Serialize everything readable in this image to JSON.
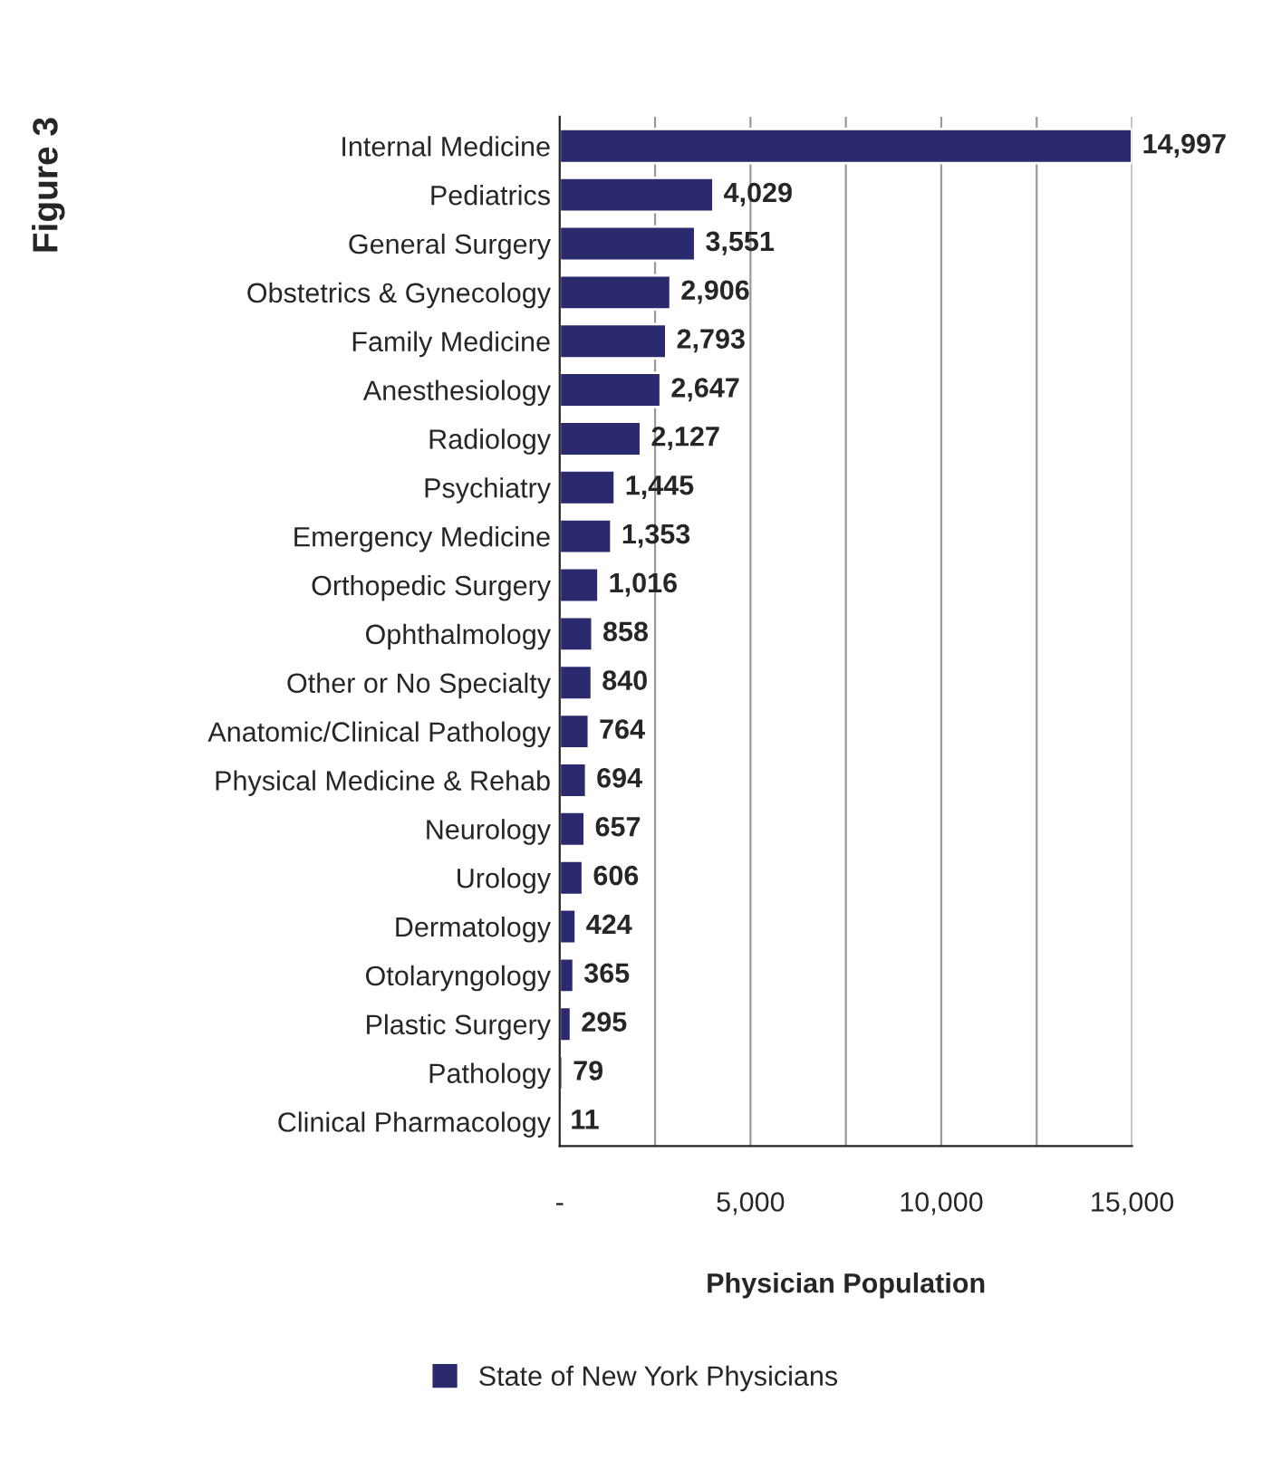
{
  "chart_data": {
    "type": "bar",
    "orientation": "horizontal",
    "title": "Figure 3",
    "xlabel": "Physician Population",
    "categories": [
      "Internal Medicine",
      "Pediatrics",
      "General Surgery",
      "Obstetrics & Gynecology",
      "Family Medicine",
      "Anesthesiology",
      "Radiology",
      "Psychiatry",
      "Emergency Medicine",
      "Orthopedic Surgery",
      "Ophthalmology",
      "Other or No Specialty",
      "Anatomic/Clinical Pathology",
      "Physical Medicine & Rehab",
      "Neurology",
      "Urology",
      "Dermatology",
      "Otolaryngology",
      "Plastic Surgery",
      "Pathology",
      "Clinical Pharmacology"
    ],
    "series": [
      {
        "name": "State of New York Physicians",
        "color": "#2b2a6e",
        "values": [
          14997,
          4029,
          3551,
          2906,
          2793,
          2647,
          2127,
          1445,
          1353,
          1016,
          858,
          840,
          764,
          694,
          657,
          606,
          424,
          365,
          295,
          79,
          11
        ],
        "value_labels": [
          "14,997",
          "4,029",
          "3,551",
          "2,906",
          "2,793",
          "2,647",
          "2,127",
          "1,445",
          "1,353",
          "1,016",
          "858",
          "840",
          "764",
          "694",
          "657",
          "606",
          "424",
          "365",
          "295",
          "79",
          "11"
        ]
      }
    ],
    "xlim": [
      0,
      15000
    ],
    "xticks": [
      {
        "value": 0,
        "label": "-"
      },
      {
        "value": 2500,
        "label": null
      },
      {
        "value": 5000,
        "label": "5,000"
      },
      {
        "value": 7500,
        "label": null
      },
      {
        "value": 10000,
        "label": "10,000"
      },
      {
        "value": 12500,
        "label": null
      },
      {
        "value": 15000,
        "label": "15,000"
      }
    ],
    "grid": "x",
    "legend": "bottom"
  }
}
